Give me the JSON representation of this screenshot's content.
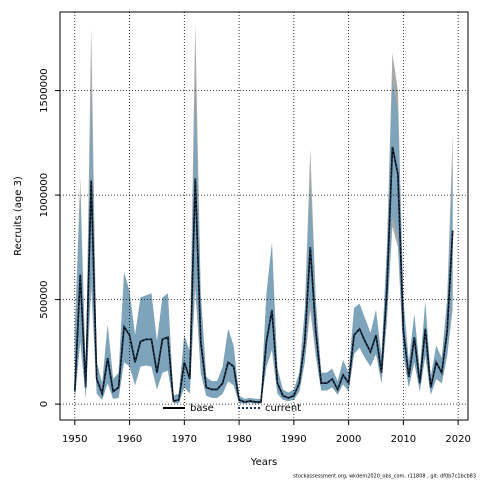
{
  "chart_data": {
    "type": "line",
    "x_label": "Years",
    "y_label": "Recruits (age 3)",
    "footer": "stockassessment.org, wkdem2020_obs_com, r11808 , git: df0b7c1bcb83",
    "xlim": [
      1947.3,
      2021.8
    ],
    "ylim": [
      -76000,
      1876000
    ],
    "xticks": [
      1950,
      1960,
      1970,
      1980,
      1990,
      2000,
      2010,
      2020
    ],
    "yticks": [
      0,
      500000,
      1000000,
      1500000
    ],
    "grid": true,
    "legend": "bottom",
    "x": [
      1950,
      1951,
      1952,
      1953,
      1954,
      1955,
      1956,
      1957,
      1958,
      1959,
      1960,
      1961,
      1962,
      1963,
      1964,
      1965,
      1966,
      1967,
      1968,
      1969,
      1970,
      1971,
      1972,
      1973,
      1974,
      1975,
      1976,
      1977,
      1978,
      1979,
      1980,
      1981,
      1982,
      1983,
      1984,
      1985,
      1986,
      1987,
      1988,
      1989,
      1990,
      1991,
      1992,
      1993,
      1994,
      1995,
      1996,
      1997,
      1998,
      1999,
      2000,
      2001,
      2002,
      2003,
      2004,
      2005,
      2006,
      2007,
      2008,
      2009,
      2010,
      2011,
      2012,
      2013,
      2014,
      2015,
      2016,
      2017,
      2018,
      2019
    ],
    "series": [
      {
        "name": "base",
        "color": "#000000",
        "dash": "none",
        "band_color": "#a0a0a0",
        "values": [
          60000,
          620000,
          80000,
          1070000,
          120000,
          50000,
          220000,
          60000,
          80000,
          370000,
          330000,
          200000,
          300000,
          310000,
          310000,
          150000,
          310000,
          320000,
          15000,
          20000,
          200000,
          120000,
          1080000,
          300000,
          80000,
          70000,
          70000,
          100000,
          200000,
          180000,
          20000,
          10000,
          15000,
          10000,
          10000,
          300000,
          450000,
          100000,
          40000,
          30000,
          40000,
          100000,
          300000,
          750000,
          350000,
          100000,
          100000,
          120000,
          70000,
          140000,
          100000,
          330000,
          360000,
          300000,
          250000,
          330000,
          150000,
          550000,
          1230000,
          1100000,
          350000,
          130000,
          320000,
          100000,
          360000,
          80000,
          200000,
          150000,
          350000,
          830000
        ],
        "lower": [
          20000,
          300000,
          30000,
          550000,
          50000,
          20000,
          100000,
          25000,
          30000,
          200000,
          180000,
          90000,
          180000,
          185000,
          180000,
          70000,
          150000,
          160000,
          5000,
          5000,
          80000,
          50000,
          550000,
          150000,
          40000,
          30000,
          30000,
          50000,
          110000,
          90000,
          5000,
          3000,
          5000,
          3000,
          3000,
          180000,
          260000,
          50000,
          20000,
          15000,
          20000,
          60000,
          200000,
          450000,
          230000,
          65000,
          65000,
          80000,
          45000,
          95000,
          60000,
          240000,
          270000,
          220000,
          180000,
          240000,
          100000,
          400000,
          850000,
          750000,
          230000,
          80000,
          200000,
          60000,
          230000,
          45000,
          120000,
          100000,
          230000,
          450000
        ],
        "upper": [
          350000,
          1080000,
          150000,
          1800000,
          200000,
          100000,
          380000,
          120000,
          150000,
          630000,
          540000,
          330000,
          510000,
          520000,
          530000,
          300000,
          510000,
          530000,
          40000,
          50000,
          330000,
          250000,
          1820000,
          530000,
          130000,
          110000,
          110000,
          180000,
          360000,
          280000,
          40000,
          25000,
          30000,
          25000,
          25000,
          530000,
          770000,
          170000,
          70000,
          55000,
          70000,
          150000,
          450000,
          1220000,
          500000,
          150000,
          150000,
          170000,
          110000,
          210000,
          150000,
          460000,
          480000,
          410000,
          340000,
          450000,
          230000,
          750000,
          1680000,
          1500000,
          500000,
          200000,
          430000,
          160000,
          490000,
          130000,
          280000,
          220000,
          500000,
          1290000
        ]
      },
      {
        "name": "current",
        "color": "#1a3a5c",
        "dash": "2,2",
        "band_color": "#6fa3c2",
        "values": [
          60000,
          620000,
          80000,
          1070000,
          120000,
          50000,
          220000,
          60000,
          80000,
          370000,
          330000,
          200000,
          300000,
          310000,
          310000,
          150000,
          310000,
          320000,
          15000,
          20000,
          200000,
          120000,
          1080000,
          300000,
          80000,
          70000,
          70000,
          100000,
          200000,
          180000,
          20000,
          10000,
          15000,
          10000,
          10000,
          300000,
          450000,
          100000,
          40000,
          30000,
          40000,
          100000,
          300000,
          750000,
          350000,
          100000,
          100000,
          120000,
          70000,
          140000,
          100000,
          330000,
          360000,
          300000,
          250000,
          330000,
          150000,
          550000,
          1230000,
          1100000,
          350000,
          130000,
          320000,
          100000,
          360000,
          80000,
          200000,
          150000,
          350000,
          830000
        ],
        "lower": [
          20000,
          300000,
          30000,
          600000,
          50000,
          20000,
          100000,
          25000,
          30000,
          200000,
          180000,
          90000,
          180000,
          185000,
          180000,
          70000,
          150000,
          160000,
          5000,
          5000,
          80000,
          50000,
          600000,
          150000,
          40000,
          30000,
          30000,
          50000,
          110000,
          90000,
          5000,
          3000,
          5000,
          3000,
          3000,
          180000,
          260000,
          50000,
          20000,
          15000,
          20000,
          60000,
          200000,
          500000,
          230000,
          65000,
          65000,
          80000,
          45000,
          95000,
          60000,
          240000,
          270000,
          220000,
          180000,
          240000,
          100000,
          400000,
          900000,
          800000,
          230000,
          80000,
          200000,
          60000,
          230000,
          45000,
          120000,
          100000,
          230000,
          500000
        ],
        "upper": [
          350000,
          1000000,
          150000,
          1500000,
          200000,
          100000,
          380000,
          120000,
          150000,
          630000,
          540000,
          330000,
          510000,
          520000,
          530000,
          300000,
          510000,
          530000,
          40000,
          50000,
          330000,
          250000,
          1500000,
          530000,
          130000,
          110000,
          110000,
          180000,
          360000,
          280000,
          40000,
          25000,
          30000,
          25000,
          25000,
          530000,
          770000,
          170000,
          70000,
          55000,
          70000,
          150000,
          450000,
          1050000,
          500000,
          150000,
          150000,
          170000,
          110000,
          210000,
          150000,
          460000,
          480000,
          410000,
          340000,
          450000,
          230000,
          750000,
          1550000,
          1400000,
          500000,
          200000,
          430000,
          160000,
          490000,
          130000,
          280000,
          220000,
          500000,
          1150000
        ]
      }
    ]
  }
}
